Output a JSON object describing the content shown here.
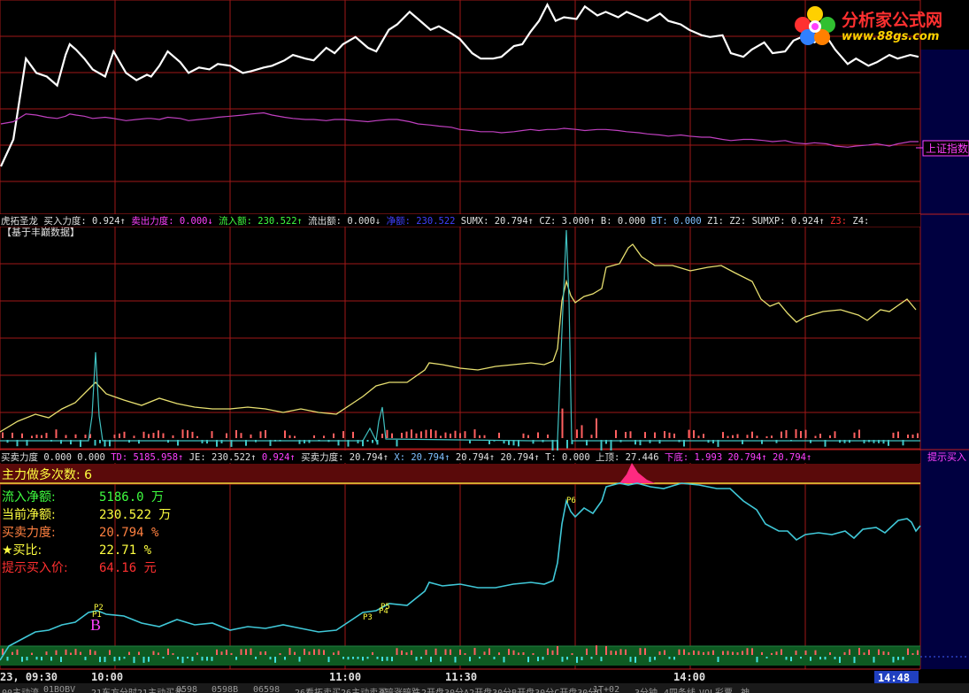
{
  "logo": {
    "title": "分析家公式网",
    "url": "www.88gs.com"
  },
  "panel1": {
    "index_label": "上证指数",
    "index_label_color": "#ff40ff",
    "price_color": "#ffffff",
    "index_color": "#c040c0"
  },
  "panel2": {
    "header": [
      {
        "text": "虎拓圣龙",
        "color": "#e0e0e0"
      },
      {
        "text": "买入力度: 0.924↑",
        "color": "#e0e0e0"
      },
      {
        "text": "卖出力度: 0.000↓",
        "color": "#ff40ff"
      },
      {
        "text": "流入额: 230.522↑",
        "color": "#40ff40"
      },
      {
        "text": "流出额: 0.000↓",
        "color": "#e0e0e0"
      },
      {
        "text": "净额: 230.522",
        "color": "#4040ff"
      },
      {
        "text": "SUMX: 20.794↑",
        "color": "#e0e0e0"
      },
      {
        "text": "CZ: 3.000↑",
        "color": "#e0e0e0"
      },
      {
        "text": "B: 0.000",
        "color": "#e0e0e0"
      },
      {
        "text": "BT: 0.000",
        "color": "#80c0ff"
      },
      {
        "text": "Z1:",
        "color": "#e0e0e0"
      },
      {
        "text": "Z2:",
        "color": "#e0e0e0"
      },
      {
        "text": "SUMXP: 0.924↑",
        "color": "#e0e0e0"
      },
      {
        "text": "Z3:",
        "color": "#ff3030"
      },
      {
        "text": "Z4:",
        "color": "#e0e0e0"
      }
    ],
    "subtitle": "【基于丰巅数据】"
  },
  "panel3": {
    "header": [
      {
        "text": "买卖力度",
        "color": "#e0e0e0"
      },
      {
        "text": "0.000",
        "color": "#e0e0e0"
      },
      {
        "text": "0.000",
        "color": "#e0e0e0"
      },
      {
        "text": "TD: 5185.958↑",
        "color": "#ff40ff"
      },
      {
        "text": "JE: 230.522↑",
        "color": "#e0e0e0"
      },
      {
        "text": "0.924↑",
        "color": "#ff40ff"
      },
      {
        "text": "买卖力度: 20.794↑",
        "color": "#e0e0e0"
      },
      {
        "text": "X: 20.794↑",
        "color": "#80c0ff"
      },
      {
        "text": "20.794↑",
        "color": "#e0e0e0"
      },
      {
        "text": "20.794↑",
        "color": "#e0e0e0"
      },
      {
        "text": "T: 0.000",
        "color": "#e0e0e0"
      },
      {
        "text": "上顶: 27.446",
        "color": "#e0e0e0"
      },
      {
        "text": "下底: 1.993",
        "color": "#ff40ff"
      },
      {
        "text": "20.794↑",
        "color": "#ff40ff"
      },
      {
        "text": "20.794↑",
        "color": "#ff40ff"
      }
    ],
    "right_label": "提示买入",
    "banner": "主力做多次数: 6",
    "info": [
      {
        "label": "流入净额:",
        "value": "5186.0 万",
        "color": "#40ff40"
      },
      {
        "label": "当前净额:",
        "value": "230.522 万",
        "color": "#ffff40"
      },
      {
        "label": "买卖力度:",
        "value": "20.794 %",
        "color": "#ff8040"
      },
      {
        "label": "★买比:",
        "value": "22.71 %",
        "color": "#ffff40"
      },
      {
        "label": "提示买入价:",
        "value": "64.16 元",
        "color": "#ff3030"
      }
    ],
    "markers": [
      "P2",
      "P1",
      "B",
      "P3",
      "P5",
      "P4",
      "P6"
    ]
  },
  "time_axis": {
    "left_label": "23, 09:30",
    "ticks": [
      "10:00",
      "11:00",
      "11:30",
      "14:00"
    ],
    "current": "14:48"
  },
  "bottom_strip": [
    "00主动流",
    "01BOBV",
    "21东方分时21主动买卖",
    "0598",
    "0598B",
    "06598",
    "26看拓卖买26主动卖买",
    "0暗涨暗跌",
    "2开盘30分A2开盘30分B开盘30分C开盘30分D",
    "1T+02",
    "3分钟",
    "4四条线",
    "VOL彩票",
    "神"
  ],
  "chart_data": {
    "type": "line",
    "x": [
      0,
      0.6,
      1.2,
      1.7,
      2.2,
      2.7,
      3.1,
      3.3,
      3.6,
      4.0,
      4.4,
      5.0,
      5.4,
      6.0,
      6.5,
      7.0,
      7.2,
      7.6,
      8.0,
      8.6,
      9.0,
      9.5,
      10.0,
      10.4,
      11.0,
      11.6,
      12.0,
      12.6,
      13.0,
      13.6,
      14.0,
      14.6,
      15.0,
      15.6,
      16.0,
      16.4,
      17.0,
      17.6,
      18.0,
      18.6,
      19.0,
      19.6,
      20.0,
      20.6,
      21.0,
      21.6,
      22.0,
      22.6,
      23.0,
      23.6,
      24.0,
      24.6,
      25.0,
      25.4,
      25.8,
      26.2,
      26.6,
      27.0,
      27.6,
      28.0,
      28.6,
      29.0,
      29.6,
      30.0,
      30.6,
      31.0,
      31.6,
      32.0,
      32.6,
      33.0,
      33.6,
      34.0,
      34.6,
      35.0,
      35.6,
      36.0,
      36.6,
      37.0,
      37.6,
      38.0,
      38.6,
      39.0,
      39.6,
      40.0,
      40.6,
      41.0,
      41.6,
      42.0,
      42.6,
      43.0,
      43.6,
      44.0
    ],
    "series": [
      {
        "values": [
          1.0,
          2.5,
          7.0,
          6.2,
          6.0,
          5.5,
          7.2,
          7.8,
          7.5,
          7.0,
          6.4,
          6.0,
          7.4,
          6.2,
          5.8,
          6.1,
          6.0,
          6.6,
          7.4,
          6.8,
          6.2,
          6.5,
          6.4,
          6.7,
          6.6,
          6.2,
          6.3,
          6.5,
          6.6,
          6.9,
          7.2,
          7.0,
          6.9,
          7.6,
          7.3,
          7.8,
          8.2,
          7.6,
          7.4,
          8.6,
          8.9,
          9.6,
          9.2,
          8.6,
          8.8,
          8.4,
          8.1,
          7.3,
          7.0,
          7.0,
          7.1,
          7.7,
          7.8,
          8.5,
          9.1,
          10.0,
          9.1,
          9.3,
          9.2,
          9.9,
          9.4,
          9.6,
          9.3,
          9.6,
          9.3,
          9.1,
          9.5,
          9.1,
          8.9,
          8.6,
          8.3,
          8.2,
          8.3,
          7.3,
          7.1,
          7.5,
          7.9,
          7.3,
          7.4,
          8.0,
          8.3,
          7.9,
          8.2,
          7.5,
          6.7,
          7.0,
          6.6,
          6.8,
          7.2,
          7.0,
          7.2,
          7.1
        ]
      },
      {
        "values": [
          2.0,
          2.2,
          2.9,
          2.8,
          2.6,
          2.5,
          2.7,
          2.9,
          2.8,
          2.7,
          2.5,
          2.6,
          2.5,
          2.3,
          2.4,
          2.5,
          2.5,
          2.4,
          2.6,
          2.5,
          2.3,
          2.4,
          2.5,
          2.6,
          2.7,
          2.8,
          2.9,
          3.0,
          2.8,
          2.6,
          2.5,
          2.4,
          2.4,
          2.3,
          2.4,
          2.4,
          2.3,
          2.2,
          2.3,
          2.4,
          2.4,
          2.2,
          2.0,
          1.9,
          1.8,
          1.7,
          1.5,
          1.4,
          1.3,
          1.3,
          1.2,
          1.3,
          1.4,
          1.5,
          1.4,
          1.5,
          1.5,
          1.6,
          1.5,
          1.4,
          1.5,
          1.5,
          1.4,
          1.3,
          1.2,
          1.1,
          1.0,
          0.9,
          1.0,
          0.9,
          0.8,
          0.8,
          0.6,
          0.5,
          0.6,
          0.6,
          0.5,
          0.4,
          0.5,
          0.3,
          0.2,
          0.3,
          0.2,
          0.0,
          -0.1,
          0.0,
          0.1,
          0.2,
          0.0,
          0.2,
          0.4,
          0.4
        ]
      }
    ],
    "xlabel": "",
    "ylabel": ""
  }
}
